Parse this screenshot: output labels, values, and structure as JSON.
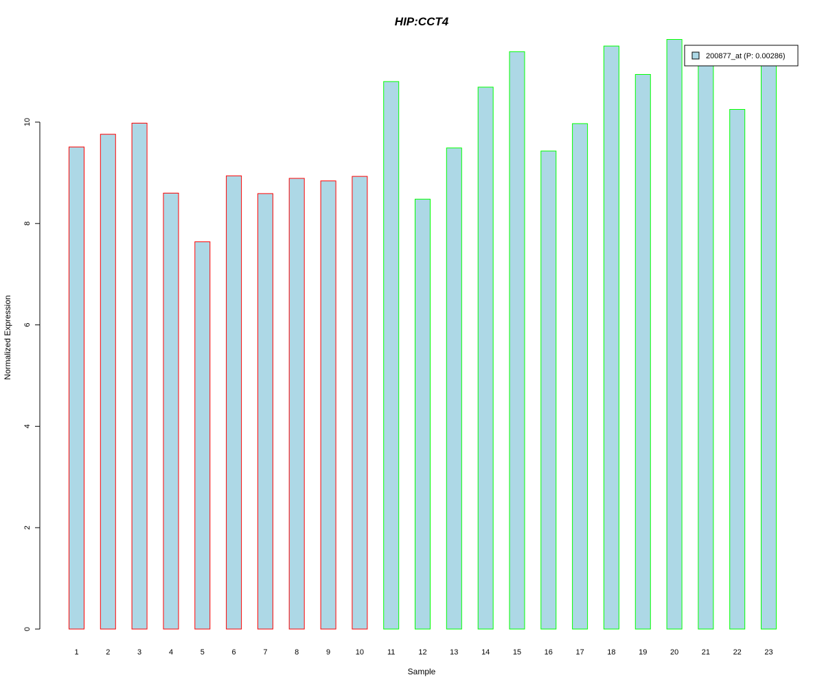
{
  "chart_data": {
    "type": "bar",
    "title": "HIP:CCT4",
    "xlabel": "Sample",
    "ylabel": "Normalized Expression",
    "categories": [
      "1",
      "2",
      "3",
      "4",
      "5",
      "6",
      "7",
      "8",
      "9",
      "10",
      "11",
      "12",
      "13",
      "14",
      "15",
      "16",
      "17",
      "18",
      "19",
      "20",
      "21",
      "22",
      "23"
    ],
    "series": [
      {
        "name": "200877_at (P: 0.00286)",
        "values": [
          9.51,
          9.76,
          9.98,
          8.6,
          7.64,
          8.94,
          8.59,
          8.89,
          8.84,
          8.93,
          10.8,
          8.48,
          9.49,
          10.69,
          11.39,
          9.43,
          9.97,
          11.5,
          10.94,
          11.63,
          11.11,
          10.25,
          11.11
        ],
        "fill": "#add8e6"
      }
    ],
    "groups": [
      {
        "samples": [
          1,
          2,
          3,
          4,
          5,
          6,
          7,
          8,
          9,
          10
        ],
        "border_color": "#ff0000"
      },
      {
        "samples": [
          11,
          12,
          13,
          14,
          15,
          16,
          17,
          18,
          19,
          20,
          21,
          22,
          23
        ],
        "border_color": "#00ff00"
      }
    ],
    "yticks": [
      0,
      2,
      4,
      6,
      8,
      10
    ],
    "ylim": [
      0,
      12
    ],
    "title_color": "#0000cc",
    "grid": false,
    "legend_position": "top-right"
  }
}
